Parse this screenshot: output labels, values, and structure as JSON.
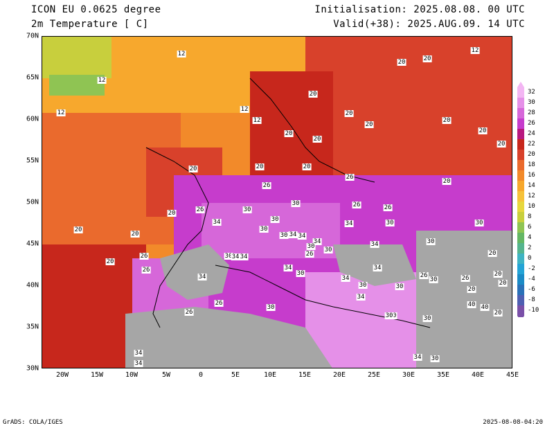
{
  "header": {
    "model": "ICON EU 0.0625 degree",
    "variable": "2m Temperature [ C]",
    "init": "Initialisation: 2025.08.08. 00 UTC",
    "valid": "Valid(+38): 2025.AUG.09. 14 UTC"
  },
  "axes": {
    "lat": [
      "70N",
      "65N",
      "60N",
      "55N",
      "50N",
      "45N",
      "40N",
      "35N",
      "30N"
    ],
    "lon": [
      "20W",
      "15W",
      "10W",
      "5W",
      "0",
      "5E",
      "10E",
      "15E",
      "20E",
      "25E",
      "30E",
      "35E",
      "40E",
      "45E"
    ]
  },
  "colorbar": {
    "levels": [
      "32",
      "30",
      "28",
      "26",
      "24",
      "22",
      "20",
      "18",
      "16",
      "14",
      "12",
      "10",
      "8",
      "6",
      "4",
      "2",
      "0",
      "-2",
      "-4",
      "-6",
      "-8",
      "-10"
    ],
    "colors": [
      "#f3b6f3",
      "#e590e8",
      "#d667d9",
      "#c63ccc",
      "#b8187f",
      "#c7271c",
      "#d8412b",
      "#ea6a2d",
      "#f28a2a",
      "#f7a82d",
      "#f6c23a",
      "#e7d73e",
      "#c8cf3d",
      "#8fc453",
      "#64b764",
      "#55b58e",
      "#3fb4c3",
      "#24a4d6",
      "#1b8bc6",
      "#2a71b8",
      "#4f5fb2",
      "#7a50a8"
    ],
    "dry_color": "#a6a6a6"
  },
  "temp_labels": [
    "12",
    "12",
    "12",
    "12",
    "12",
    "12",
    "20",
    "20",
    "20",
    "20",
    "20",
    "20",
    "20",
    "20",
    "20",
    "20",
    "20",
    "20",
    "20",
    "20",
    "26",
    "26",
    "26",
    "26",
    "26",
    "26",
    "20",
    "20",
    "20",
    "20",
    "30",
    "30",
    "30",
    "30",
    "30",
    "30",
    "34",
    "34",
    "34",
    "34",
    "30",
    "30",
    "30",
    "30",
    "34",
    "34",
    "34",
    "34",
    "30",
    "30",
    "30",
    "26",
    "26",
    "26",
    "34",
    "34",
    "34",
    "34",
    "30",
    "30",
    "30",
    "30",
    "40",
    "40",
    "34",
    "34",
    "30",
    "26",
    "26",
    "20",
    "20",
    "20",
    "20",
    "20",
    "26",
    "26",
    "30",
    "30",
    "34",
    "34"
  ],
  "footer": {
    "credit": "GrADS: COLA/IGES",
    "timestamp": "2025-08-08-04:20"
  }
}
